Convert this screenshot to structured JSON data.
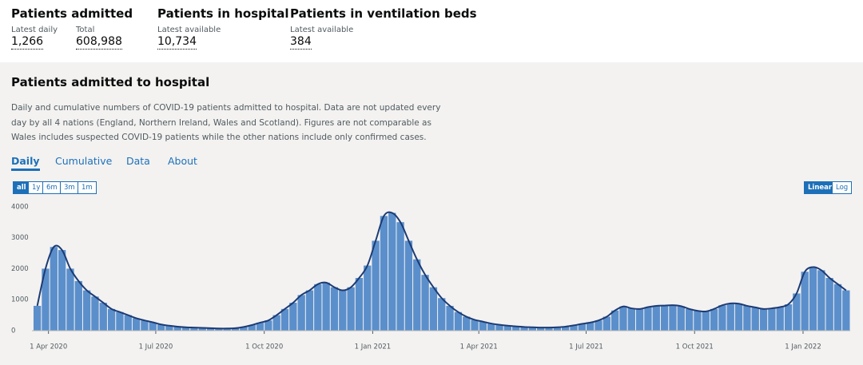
{
  "header": {
    "metrics": [
      {
        "title": "Patients admitted",
        "items": [
          {
            "label": "Latest daily",
            "value": "1,266"
          },
          {
            "label": "Total",
            "value": "608,988"
          }
        ]
      },
      {
        "title": "Patients in hospital",
        "items": [
          {
            "label": "Latest available",
            "value": "10,734"
          }
        ]
      },
      {
        "title": "Patients in ventilation beds",
        "items": [
          {
            "label": "Latest available",
            "value": "384"
          }
        ]
      }
    ]
  },
  "card": {
    "title": "Patients admitted to hospital",
    "description": "Daily and cumulative numbers of COVID-19 patients admitted to hospital. Data are not updated every day by all 4 nations (England, Northern Ireland, Wales and Scotland). Figures are not comparable as Wales includes suspected COVID-19 patients while the other nations include only confirmed cases.",
    "tabs": [
      "Daily",
      "Cumulative",
      "Data",
      "About"
    ],
    "range_buttons": [
      "all",
      "1y",
      "6m",
      "3m",
      "1m"
    ],
    "scale_buttons": [
      "Linear",
      "Log"
    ]
  },
  "chart_data": {
    "type": "bar",
    "x": [
      "2020-03-19",
      "2020-03-26",
      "2020-04-02",
      "2020-04-09",
      "2020-04-16",
      "2020-04-23",
      "2020-04-30",
      "2020-05-07",
      "2020-05-14",
      "2020-05-21",
      "2020-05-28",
      "2020-06-04",
      "2020-06-11",
      "2020-06-18",
      "2020-06-25",
      "2020-07-02",
      "2020-07-09",
      "2020-07-16",
      "2020-07-23",
      "2020-07-30",
      "2020-08-06",
      "2020-08-13",
      "2020-08-20",
      "2020-08-27",
      "2020-09-03",
      "2020-09-10",
      "2020-09-17",
      "2020-09-24",
      "2020-10-01",
      "2020-10-08",
      "2020-10-15",
      "2020-10-22",
      "2020-10-29",
      "2020-11-05",
      "2020-11-12",
      "2020-11-19",
      "2020-11-26",
      "2020-12-03",
      "2020-12-10",
      "2020-12-17",
      "2020-12-24",
      "2020-12-31",
      "2021-01-07",
      "2021-01-14",
      "2021-01-21",
      "2021-01-28",
      "2021-02-04",
      "2021-02-11",
      "2021-02-18",
      "2021-02-25",
      "2021-03-04",
      "2021-03-11",
      "2021-03-18",
      "2021-03-25",
      "2021-04-01",
      "2021-04-08",
      "2021-04-15",
      "2021-04-22",
      "2021-04-29",
      "2021-05-06",
      "2021-05-13",
      "2021-05-20",
      "2021-05-27",
      "2021-06-03",
      "2021-06-10",
      "2021-06-17",
      "2021-06-24",
      "2021-07-01",
      "2021-07-08",
      "2021-07-15",
      "2021-07-22",
      "2021-07-29",
      "2021-08-05",
      "2021-08-12",
      "2021-08-19",
      "2021-08-26",
      "2021-09-02",
      "2021-09-09",
      "2021-09-16",
      "2021-09-23",
      "2021-09-30",
      "2021-10-07",
      "2021-10-14",
      "2021-10-21",
      "2021-10-28",
      "2021-11-04",
      "2021-11-11",
      "2021-11-18",
      "2021-11-25",
      "2021-12-02",
      "2021-12-09",
      "2021-12-16",
      "2021-12-23",
      "2021-12-30",
      "2022-01-06",
      "2022-01-13",
      "2022-01-20",
      "2022-01-27",
      "2022-02-03"
    ],
    "series": [
      {
        "color": "#5b8fcb",
        "line_color": "#1d3b73",
        "values": [
          800,
          2000,
          2700,
          2600,
          2000,
          1600,
          1300,
          1100,
          900,
          700,
          600,
          500,
          400,
          330,
          270,
          200,
          160,
          130,
          110,
          100,
          90,
          80,
          70,
          70,
          80,
          120,
          180,
          260,
          330,
          500,
          700,
          900,
          1150,
          1300,
          1500,
          1550,
          1400,
          1300,
          1400,
          1700,
          2100,
          2900,
          3700,
          3800,
          3500,
          2900,
          2300,
          1800,
          1400,
          1050,
          800,
          600,
          450,
          350,
          290,
          230,
          190,
          160,
          140,
          120,
          110,
          100,
          100,
          110,
          130,
          170,
          220,
          260,
          330,
          450,
          650,
          780,
          720,
          700,
          760,
          800,
          810,
          820,
          790,
          700,
          640,
          620,
          700,
          820,
          880,
          870,
          800,
          750,
          700,
          720,
          760,
          850,
          1200,
          1900,
          2050,
          1950,
          1700,
          1500,
          1300
        ]
      }
    ],
    "xlim": [
      "2020-03-18",
      "2022-02-10"
    ],
    "xticks": [
      {
        "value": "2020-04-01",
        "label": "1 Apr 2020"
      },
      {
        "value": "2020-07-01",
        "label": "1 Jul 2020"
      },
      {
        "value": "2020-10-01",
        "label": "1 Oct 2020"
      },
      {
        "value": "2021-01-01",
        "label": "1 Jan 2021"
      },
      {
        "value": "2021-04-01",
        "label": "1 Apr 2021"
      },
      {
        "value": "2021-07-01",
        "label": "1 Jul 2021"
      },
      {
        "value": "2021-10-01",
        "label": "1 Oct 2021"
      },
      {
        "value": "2022-01-01",
        "label": "1 Jan 2022"
      }
    ],
    "ylim": [
      0,
      4200
    ],
    "yticks": [
      0,
      1000,
      2000,
      3000,
      4000
    ]
  }
}
